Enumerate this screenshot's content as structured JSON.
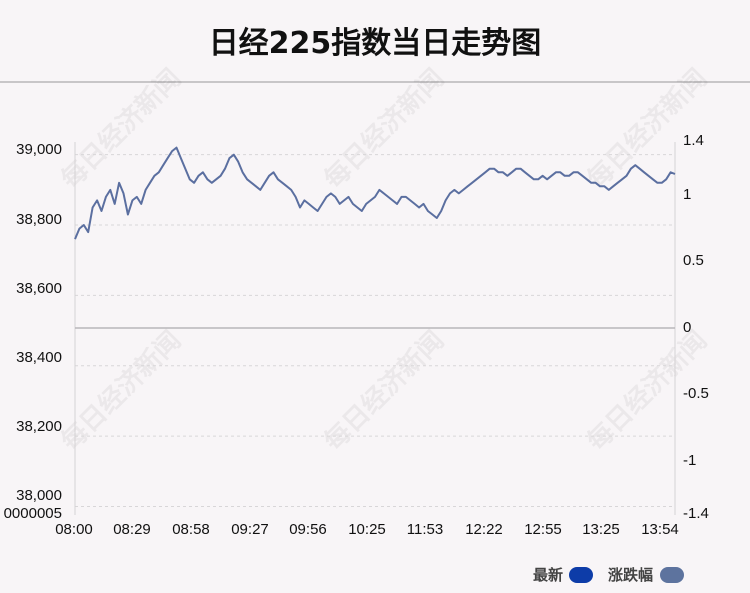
{
  "chart_data": {
    "type": "line",
    "title": "日经225指数当日走势图",
    "x_tick_labels": [
      "08:00",
      "08:29",
      "08:58",
      "09:27",
      "09:56",
      "10:25",
      "11:53",
      "12:22",
      "12:55",
      "13:25",
      "13:54"
    ],
    "y_left_ticks": [
      "39,000",
      "38,800",
      "38,600",
      "38,400",
      "38,200",
      "38,000"
    ],
    "y_left_bottom_label": "0000005",
    "y_right_ticks": [
      "1.4",
      "1",
      "0.5",
      "0",
      "-0.5",
      "-1",
      "-1.4"
    ],
    "y_left_range": [
      37976,
      39036
    ],
    "y_right_range": [
      -1.4,
      1.4
    ],
    "zero_line_value": 38485,
    "series": [
      {
        "name": "最新",
        "color": "#5b6fa0",
        "values": [
          38760,
          38790,
          38800,
          38780,
          38850,
          38870,
          38840,
          38880,
          38900,
          38860,
          38920,
          38890,
          38830,
          38870,
          38880,
          38860,
          38900,
          38920,
          38940,
          38950,
          38970,
          38990,
          39010,
          39020,
          38990,
          38960,
          38930,
          38920,
          38940,
          38950,
          38930,
          38920,
          38930,
          38940,
          38960,
          38990,
          39000,
          38980,
          38950,
          38930,
          38920,
          38910,
          38900,
          38920,
          38940,
          38950,
          38930,
          38920,
          38910,
          38900,
          38880,
          38850,
          38870,
          38860,
          38850,
          38840,
          38860,
          38880,
          38890,
          38880,
          38860,
          38870,
          38880,
          38860,
          38850,
          38840,
          38860,
          38870,
          38880,
          38900,
          38890,
          38880,
          38870,
          38860,
          38880,
          38880,
          38870,
          38860,
          38850,
          38860,
          38840,
          38830,
          38820,
          38840,
          38870,
          38890,
          38900,
          38890,
          38900,
          38910,
          38920,
          38930,
          38940,
          38950,
          38960,
          38960,
          38950,
          38950,
          38940,
          38950,
          38960,
          38960,
          38950,
          38940,
          38930,
          38930,
          38940,
          38930,
          38940,
          38950,
          38950,
          38940,
          38940,
          38950,
          38950,
          38940,
          38930,
          38920,
          38920,
          38910,
          38910,
          38900,
          38910,
          38920,
          38930,
          38940,
          38960,
          38970,
          38960,
          38950,
          38940,
          38930,
          38920,
          38920,
          38930,
          38950,
          38945
        ]
      }
    ],
    "legend": [
      {
        "label": "最新",
        "color": "#0d3ca8"
      },
      {
        "label": "涨跌幅",
        "color": "#5d739e"
      }
    ],
    "legend_position": "bottom-right",
    "grid": true
  },
  "watermark_text": "每日经济新闻"
}
